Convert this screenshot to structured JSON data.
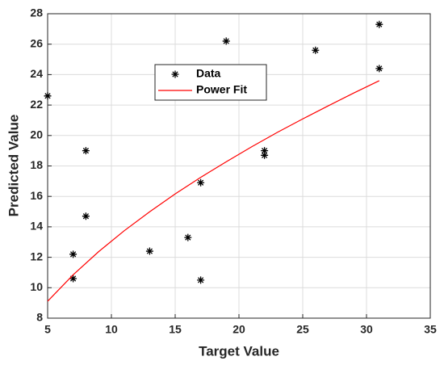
{
  "chart_data": {
    "type": "scatter",
    "x_label": "Target Value",
    "y_label": "Predicted Value",
    "xlim": [
      5,
      35
    ],
    "ylim": [
      8,
      28
    ],
    "xticks": [
      5,
      10,
      15,
      20,
      25,
      30,
      35
    ],
    "yticks": [
      8,
      10,
      12,
      14,
      16,
      18,
      20,
      22,
      24,
      26,
      28
    ],
    "grid": true,
    "legend": "top",
    "series": [
      {
        "name": "Data",
        "color": "#000000",
        "style": "marker",
        "x": [
          5,
          7,
          7,
          8,
          8,
          13,
          16,
          17,
          17,
          19,
          22,
          22,
          26,
          31,
          31
        ],
        "values": [
          22.6,
          12.2,
          10.6,
          19.0,
          14.7,
          12.4,
          13.3,
          16.9,
          10.5,
          26.2,
          19.0,
          18.7,
          25.6,
          27.3,
          24.4
        ]
      },
      {
        "name": "Power Fit",
        "color": "#ff0000",
        "style": "line",
        "x": [
          5,
          7,
          9,
          11,
          13,
          15,
          17,
          19,
          21,
          23,
          25,
          27,
          29,
          31
        ],
        "values": [
          9.11,
          10.85,
          12.37,
          13.74,
          14.99,
          16.16,
          17.25,
          18.27,
          19.26,
          20.2,
          21.09,
          21.95,
          22.79,
          23.6
        ]
      }
    ]
  }
}
